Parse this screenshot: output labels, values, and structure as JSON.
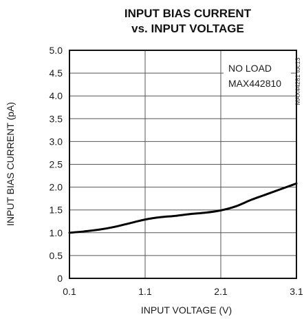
{
  "chart_data": {
    "type": "line",
    "title": "INPUT BIAS CURRENT",
    "subtitle": "vs. INPUT VOLTAGE",
    "xlabel": "INPUT VOLTAGE (V)",
    "ylabel": "INPUT BIAS CURRENT (pA)",
    "xlim": [
      0.1,
      3.1
    ],
    "ylim": [
      0,
      5.0
    ],
    "xticks": [
      "0.1",
      "1.1",
      "2.1",
      "3.1"
    ],
    "yticks": [
      "0",
      "0.5",
      "1.0",
      "1.5",
      "2.0",
      "2.5",
      "3.0",
      "3.5",
      "4.0",
      "4.5",
      "5.0"
    ],
    "annotations": [
      "NO LOAD",
      "MAX442810"
    ],
    "figure_code": "MAX44281 toc13",
    "grid": true,
    "series": [
      {
        "x": [
          0.1,
          0.3,
          0.5,
          0.7,
          0.9,
          1.1,
          1.3,
          1.5,
          1.7,
          1.9,
          2.1,
          2.3,
          2.5,
          2.7,
          2.9,
          3.1
        ],
        "values": [
          1.0,
          1.03,
          1.07,
          1.13,
          1.21,
          1.29,
          1.34,
          1.37,
          1.41,
          1.44,
          1.49,
          1.58,
          1.72,
          1.84,
          1.96,
          2.08
        ]
      }
    ]
  }
}
